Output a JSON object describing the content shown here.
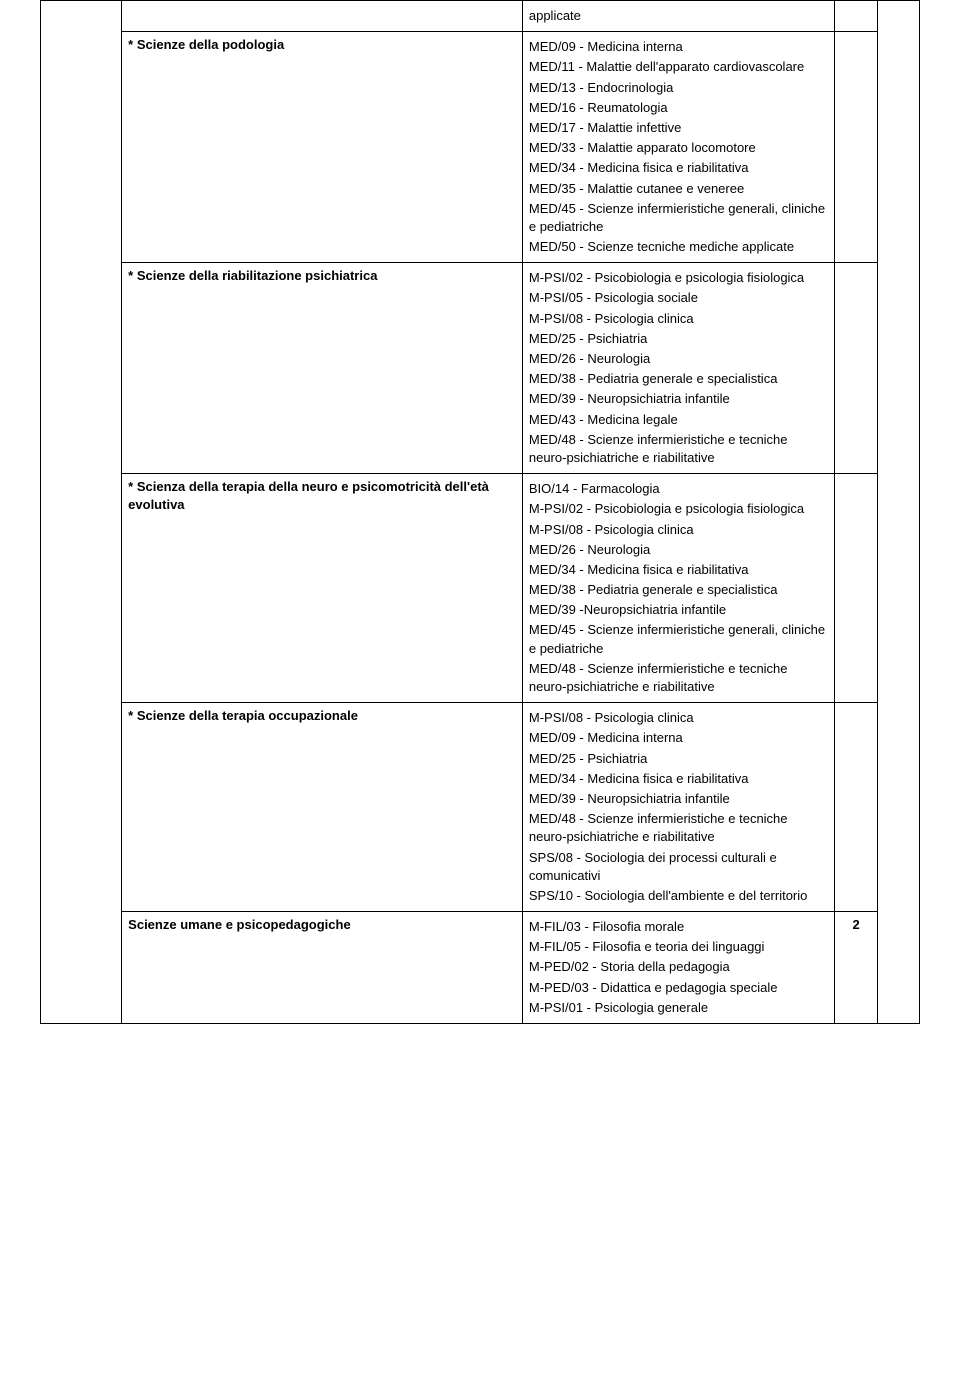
{
  "rows": [
    {
      "left": "",
      "right": [
        "applicate"
      ],
      "num": "",
      "leftBold": false,
      "first": true
    },
    {
      "left": "* Scienze della podologia",
      "right": [
        "MED/09 - Medicina interna",
        "MED/11 - Malattie dell'apparato cardiovascolare",
        "MED/13 - Endocrinologia",
        "MED/16 - Reumatologia",
        "MED/17 - Malattie infettive",
        "MED/33 - Malattie apparato locomotore",
        "MED/34 - Medicina fisica e riabilitativa",
        "MED/35 - Malattie cutanee e veneree",
        "MED/45 - Scienze infermieristiche generali, cliniche e pediatriche",
        "MED/50 - Scienze tecniche mediche applicate"
      ],
      "num": "",
      "leftBold": true
    },
    {
      "left": "* Scienze della riabilitazione psichiatrica",
      "right": [
        "M-PSI/02 - Psicobiologia e psicologia fisiologica",
        "M-PSI/05 - Psicologia sociale",
        "M-PSI/08 - Psicologia clinica",
        "MED/25 - Psichiatria",
        "MED/26 - Neurologia",
        "MED/38 - Pediatria generale e specialistica",
        "MED/39 - Neuropsichiatria infantile",
        "MED/43 - Medicina legale",
        "MED/48 - Scienze infermieristiche e tecniche neuro-psichiatriche e riabilitative"
      ],
      "num": "",
      "leftBold": true
    },
    {
      "left": "* Scienza della terapia della neuro e psicomotricità dell'età evolutiva",
      "right": [
        "BIO/14 - Farmacologia",
        "M-PSI/02 - Psicobiologia e psicologia fisiologica",
        "M-PSI/08 - Psicologia clinica",
        "MED/26 - Neurologia",
        "MED/34 - Medicina fisica e riabilitativa",
        "MED/38 - Pediatria generale e specialistica",
        "MED/39 -Neuropsichiatria infantile",
        "MED/45 - Scienze infermieristiche generali, cliniche e pediatriche",
        "MED/48 - Scienze infermieristiche e tecniche neuro-psichiatriche e riabilitative"
      ],
      "num": "",
      "leftBold": true
    },
    {
      "left": "* Scienze della terapia occupazionale",
      "right": [
        "M-PSI/08 - Psicologia clinica",
        "MED/09 - Medicina interna",
        "MED/25 - Psichiatria",
        "MED/34 - Medicina fisica e riabilitativa",
        "MED/39 - Neuropsichiatria infantile",
        "MED/48 - Scienze infermieristiche e tecniche neuro-psichiatriche e riabilitative",
        "SPS/08 - Sociologia dei processi culturali e comunicativi",
        "SPS/10 - Sociologia dell'ambiente e del territorio"
      ],
      "num": "",
      "leftBold": true
    },
    {
      "left": "Scienze umane e psicopedagogiche",
      "right": [
        "M-FIL/03 - Filosofia morale",
        "M-FIL/05 - Filosofia e teoria dei linguaggi",
        "M-PED/02 - Storia della pedagogia",
        "M-PED/03 - Didattica e pedagogia speciale",
        "M-PSI/01 - Psicologia generale"
      ],
      "num": "2",
      "leftBold": true
    }
  ],
  "gutterRowspan": 7,
  "tailRowspan": 7
}
